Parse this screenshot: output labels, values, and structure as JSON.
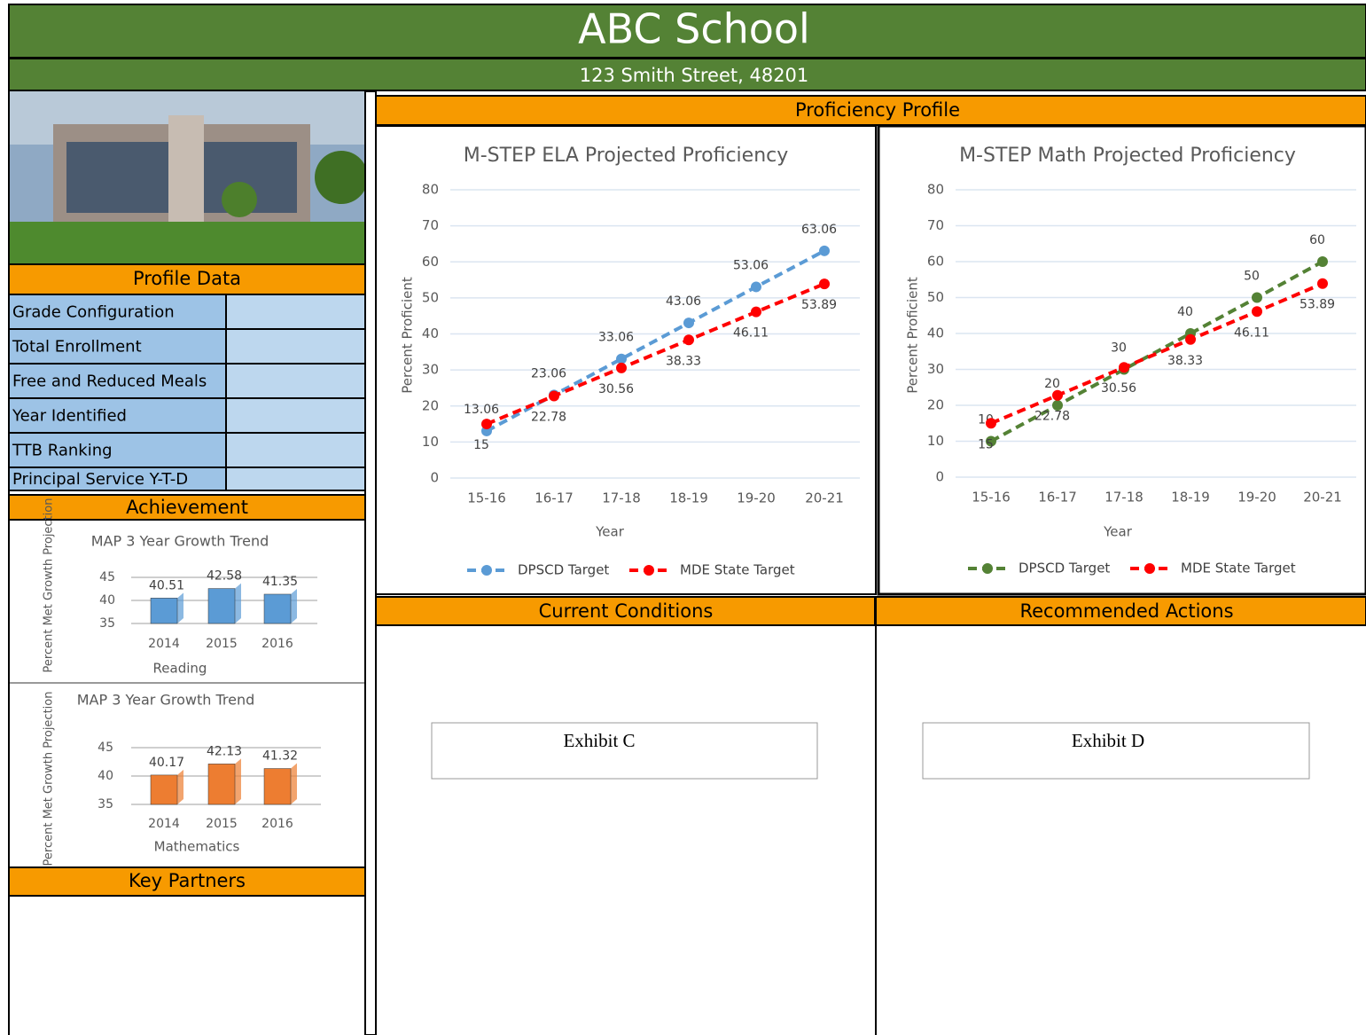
{
  "header": {
    "title": "ABC School",
    "address": "123 Smith Street, 48201"
  },
  "profile_data": {
    "heading": "Profile Data",
    "rows": [
      "Grade Configuration",
      "Total Enrollment",
      "Free and Reduced Meals",
      "Year Identified",
      "TTB Ranking",
      "Principal Service Y-T-D"
    ]
  },
  "sections": {
    "achievement": "Achievement",
    "key_partners": "Key Partners",
    "proficiency_profile": "Proficiency Profile",
    "current_conditions": "Current Conditions",
    "recommended_actions": "Recommended Actions"
  },
  "exhibits": [
    "Exhibit C",
    "Exhibit D"
  ],
  "chart_data": [
    {
      "type": "bar",
      "title": "MAP 3 Year Growth Trend",
      "x_label": "Reading",
      "y_label": "Percent Met Growth Projection",
      "categories": [
        "2014",
        "2015",
        "2016"
      ],
      "values": [
        40.51,
        42.58,
        41.35
      ],
      "color": "#5b9bd5",
      "ylim": [
        35,
        45
      ],
      "yticks": [
        35,
        40,
        45
      ],
      "grid": true
    },
    {
      "type": "bar",
      "title": "MAP 3 Year Growth Trend",
      "x_label": "Mathematics",
      "y_label": "Percent Met Growth Projection",
      "categories": [
        "2014",
        "2015",
        "2016"
      ],
      "values": [
        40.17,
        42.13,
        41.32
      ],
      "color": "#ed7d31",
      "ylim": [
        35,
        45
      ],
      "yticks": [
        35,
        40,
        45
      ],
      "grid": true
    },
    {
      "type": "line",
      "title": "M-STEP ELA Projected Proficiency",
      "x_label": "Year",
      "y_label": "Percent Proficient",
      "categories": [
        "15-16",
        "16-17",
        "17-18",
        "18-19",
        "19-20",
        "20-21"
      ],
      "series": [
        {
          "name": "DPSCD Target",
          "color": "#5b9bd5",
          "values": [
            13.06,
            23.06,
            33.06,
            43.06,
            53.06,
            63.06
          ]
        },
        {
          "name": "MDE State Target",
          "color": "#ff0000",
          "values": [
            15,
            22.78,
            30.56,
            38.33,
            46.11,
            53.89
          ]
        }
      ],
      "ylim": [
        0,
        80
      ],
      "yticks": [
        0,
        10,
        20,
        30,
        40,
        50,
        60,
        70,
        80
      ],
      "grid": true
    },
    {
      "type": "line",
      "title": "M-STEP Math Projected Proficiency",
      "x_label": "Year",
      "y_label": "Percent Proficient",
      "categories": [
        "15-16",
        "16-17",
        "17-18",
        "18-19",
        "19-20",
        "20-21"
      ],
      "series": [
        {
          "name": "DPSCD Target",
          "color": "#548235",
          "values": [
            10,
            20,
            30,
            40,
            50,
            60
          ]
        },
        {
          "name": "MDE State Target",
          "color": "#ff0000",
          "values": [
            15,
            22.78,
            30.56,
            38.33,
            46.11,
            53.89
          ]
        }
      ],
      "ylim": [
        0,
        80
      ],
      "yticks": [
        0,
        10,
        20,
        30,
        40,
        50,
        60,
        70,
        80
      ],
      "grid": true
    }
  ]
}
